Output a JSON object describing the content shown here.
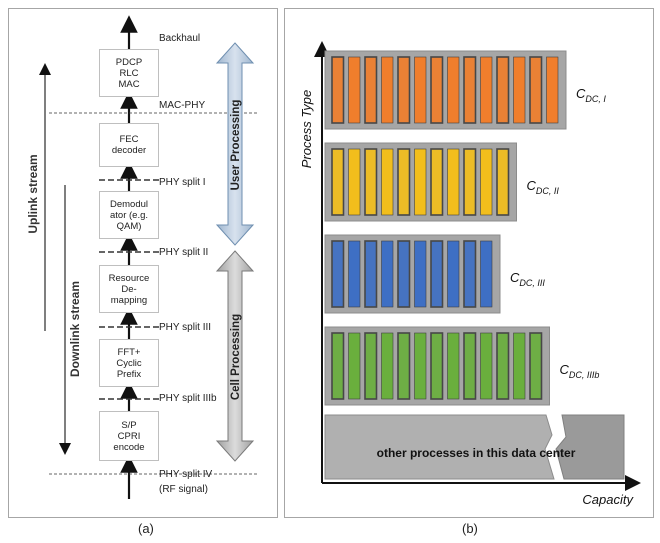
{
  "panel_a": {
    "caption": "(a)",
    "blocks": [
      {
        "label": "PDCP\nRLC\nMAC"
      },
      {
        "label": "FEC\ndecoder"
      },
      {
        "label": "Demodul\nator (e.g.\nQAM)"
      },
      {
        "label": "Resource\nDe-\nmapping"
      },
      {
        "label": "FFT+\nCyclic\nPrefix"
      },
      {
        "label": "S/P\nCPRI\nencode"
      }
    ],
    "splits": [
      {
        "label": "Backhaul"
      },
      {
        "label": "MAC-PHY"
      },
      {
        "label": "PHY split I"
      },
      {
        "label": "PHY split II"
      },
      {
        "label": "PHY split III"
      },
      {
        "label": "PHY split IIIb"
      },
      {
        "label": "PHY split IV"
      },
      {
        "label": "(RF signal)"
      }
    ],
    "uplink_label": "Uplink stream",
    "downlink_label": "Downlink stream",
    "user_processing_label": "User Processing",
    "cell_processing_label": "Cell Processing"
  },
  "panel_b": {
    "caption": "(b)",
    "y_axis_label": "Process Type",
    "x_axis_label": "Capacity",
    "other_label": "other processes in this data center",
    "bars": [
      {
        "main": "C",
        "sub": "DC, I",
        "color": "#f07e2c",
        "units": 14
      },
      {
        "main": "C",
        "sub": "DC, II",
        "color": "#f2be1c",
        "units": 11
      },
      {
        "main": "C",
        "sub": "DC, III",
        "color": "#3e6fc4",
        "units": 10
      },
      {
        "main": "C",
        "sub": "DC, IIIb",
        "color": "#6aaf3d",
        "units": 13
      }
    ],
    "colors": {
      "bar_background": "#a6a6a6",
      "other_fill": "#b0b0b0"
    }
  }
}
